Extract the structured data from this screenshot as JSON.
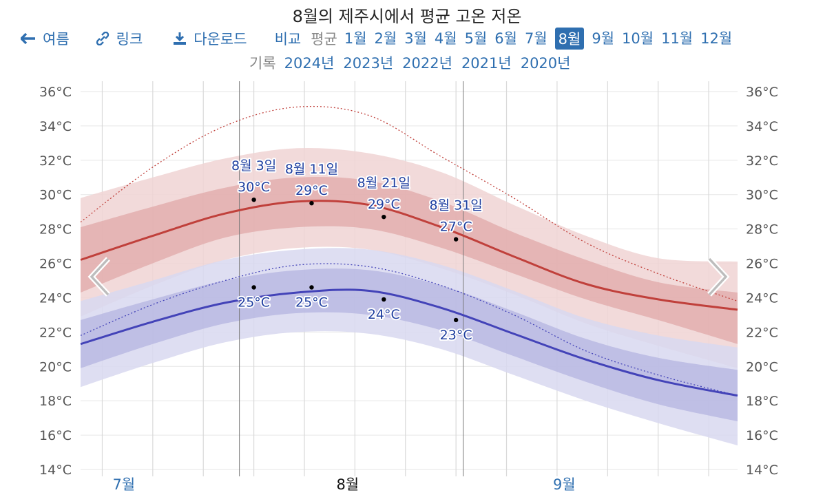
{
  "title": "8월의 제주시에서 평균 고온 저온",
  "nav": {
    "back_label": "여름",
    "link_label": "링크",
    "download_label": "다운로드",
    "compare_label": "비교",
    "average_label": "평균",
    "months": [
      "1월",
      "2월",
      "3월",
      "4월",
      "5월",
      "6월",
      "7월",
      "8월",
      "9월",
      "10월",
      "11월",
      "12월"
    ],
    "selected_month_index": 7,
    "record_label": "기록",
    "years": [
      "2024년",
      "2023년",
      "2022년",
      "2021년",
      "2020년"
    ]
  },
  "colors": {
    "high_line": "#c0403b",
    "low_line": "#4343b8",
    "high_band_inner": "#e0a8a8",
    "high_band_outer": "#f0d4d4",
    "low_band_inner": "#b4b4e0",
    "low_band_outer": "#d8d8f0",
    "link": "#2f6fb0"
  },
  "chart_data": {
    "type": "line",
    "y_unit": "°C",
    "ylim": [
      13.6,
      36.6
    ],
    "y_ticks": [
      "14°C",
      "16°C",
      "18°C",
      "20°C",
      "22°C",
      "24°C",
      "26°C",
      "28°C",
      "30°C",
      "32°C",
      "34°C",
      "36°C"
    ],
    "y_tick_values": [
      14,
      16,
      18,
      20,
      22,
      24,
      26,
      28,
      30,
      32,
      34,
      36
    ],
    "x_domain": [
      "07-10",
      "10-09"
    ],
    "x_month_labels": [
      {
        "label": "7월",
        "date": "07-16",
        "highlight": false
      },
      {
        "label": "8월",
        "date": "08-16",
        "highlight": true
      },
      {
        "label": "9월",
        "date": "09-15",
        "highlight": false
      }
    ],
    "month_boundaries": [
      "08-01",
      "09-01"
    ],
    "weekly_gridlines": [
      "07-13",
      "07-20",
      "07-27",
      "08-03",
      "08-10",
      "08-17",
      "08-24",
      "08-31",
      "09-07",
      "09-14",
      "09-21",
      "09-28",
      "10-05"
    ],
    "x": [
      "07-10",
      "07-20",
      "07-30",
      "08-09",
      "08-19",
      "08-29",
      "09-08",
      "09-18",
      "09-28",
      "10-09"
    ],
    "series": [
      {
        "name": "고온",
        "values": [
          26.2,
          27.6,
          28.9,
          29.6,
          29.4,
          28.1,
          26.4,
          24.8,
          23.9,
          23.3
        ]
      },
      {
        "name": "저온",
        "values": [
          21.3,
          22.6,
          23.7,
          24.3,
          24.4,
          23.4,
          21.9,
          20.4,
          19.2,
          18.3
        ]
      }
    ],
    "high_band_inner": {
      "lower": [
        24.3,
        26.0,
        27.5,
        28.1,
        28.0,
        26.9,
        25.4,
        23.9,
        22.7,
        21.3
      ],
      "upper": [
        28.1,
        29.3,
        30.4,
        31.0,
        30.8,
        29.6,
        27.8,
        26.2,
        24.9,
        24.3
      ]
    },
    "high_band_outer": {
      "lower": [
        22.9,
        24.7,
        26.2,
        26.9,
        26.8,
        25.7,
        24.2,
        22.5,
        21.2,
        19.9
      ],
      "upper": [
        29.8,
        31.0,
        32.1,
        32.7,
        32.4,
        31.3,
        29.4,
        27.6,
        26.3,
        26.1
      ]
    },
    "low_band_inner": {
      "lower": [
        19.9,
        21.3,
        22.5,
        23.1,
        23.0,
        22.1,
        20.6,
        19.1,
        17.8,
        16.8
      ],
      "upper": [
        22.7,
        23.9,
        25.0,
        25.6,
        25.6,
        24.7,
        23.2,
        21.6,
        20.5,
        19.8
      ]
    },
    "low_band_outer": {
      "lower": [
        18.8,
        20.2,
        21.4,
        22.0,
        21.9,
        21.0,
        19.5,
        18.0,
        16.7,
        15.4
      ],
      "upper": [
        23.8,
        25.0,
        26.2,
        26.8,
        26.8,
        25.9,
        24.4,
        22.8,
        21.8,
        21.1
      ]
    },
    "record_high": [
      28.4,
      31.6,
      34.0,
      35.1,
      34.6,
      32.2,
      29.8,
      27.2,
      25.4,
      23.8
    ],
    "record_low_avg": [
      21.8,
      23.6,
      25.0,
      25.9,
      25.8,
      24.7,
      23.0,
      20.9,
      19.5,
      18.3
    ],
    "annotations": [
      {
        "date": "08-03",
        "high_label": "30°C",
        "high": 29.7,
        "low_label": "25°C",
        "low": 24.6,
        "title": "8월 3일"
      },
      {
        "date": "08-11",
        "high_label": "29°C",
        "high": 29.5,
        "low_label": "25°C",
        "low": 24.6,
        "title": "8월 11일"
      },
      {
        "date": "08-21",
        "high_label": "29°C",
        "high": 28.7,
        "low_label": "24°C",
        "low": 23.9,
        "title": "8월 21일"
      },
      {
        "date": "08-31",
        "high_label": "27°C",
        "high": 27.4,
        "low_label": "23°C",
        "low": 22.7,
        "title": "8월 31일"
      }
    ]
  }
}
